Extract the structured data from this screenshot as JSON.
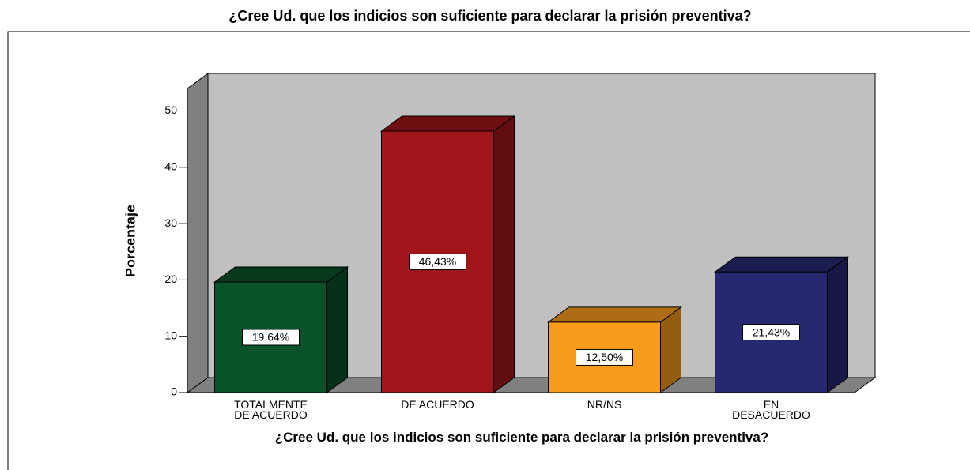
{
  "chart_data": {
    "type": "bar3d",
    "title": "¿Cree Ud. que los indicios son suficiente para declarar la prisión preventiva?",
    "x_label": "¿Cree Ud. que los indicios son suficiente para declarar la prisión preventiva?",
    "y_label": "Porcentaje",
    "categories": [
      "TOTALMENTE DE ACUERDO",
      "DE ACUERDO",
      "NR/NS",
      "EN DESACUERDO"
    ],
    "values": [
      19.64,
      46.43,
      12.5,
      21.43
    ],
    "value_labels": [
      "19,64%",
      "46,43%",
      "12,50%",
      "21,43%"
    ],
    "colors": [
      "#0a5229",
      "#a0161a",
      "#f99b1c",
      "#262872"
    ],
    "ylim": [
      0,
      54
    ],
    "yticks": [
      0,
      10,
      20,
      30,
      40,
      50
    ]
  }
}
